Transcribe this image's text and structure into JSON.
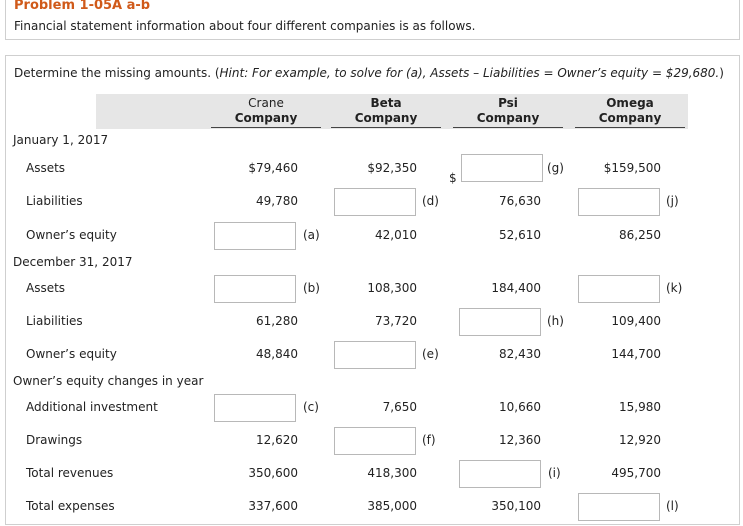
{
  "header": {
    "title": "Problem 1-05A a-b",
    "description": "Financial statement information about four different companies is as follows."
  },
  "instructions": {
    "prefix": "Determine the missing amounts. (",
    "hint": "Hint: For example, to solve for (a), Assets – Liabilities = Owner’s equity = $29,680.",
    "suffix": ")"
  },
  "columns": [
    {
      "line1": "Crane",
      "line2": "Company"
    },
    {
      "line1": "Beta",
      "line2": "Company"
    },
    {
      "line1": "Psi",
      "line2": "Company"
    },
    {
      "line1": "Omega",
      "line2": "Company"
    }
  ],
  "sections": {
    "jan": "January 1, 2017",
    "dec": "December 31, 2017",
    "changes": "Owner’s equity changes in year"
  },
  "rows": [
    {
      "label": "Assets",
      "cells": [
        "$79,460",
        "$92,350",
        "(g)",
        "$159,500"
      ]
    },
    {
      "label": "Liabilities",
      "cells": [
        "49,780",
        "(d)",
        "76,630",
        "(j)"
      ]
    },
    {
      "label": "Owner’s equity",
      "cells": [
        "(a)",
        "42,010",
        "52,610",
        "86,250"
      ]
    },
    {
      "label": "Assets",
      "cells": [
        "(b)",
        "108,300",
        "184,400",
        "(k)"
      ]
    },
    {
      "label": "Liabilities",
      "cells": [
        "61,280",
        "73,720",
        "(h)",
        "109,400"
      ]
    },
    {
      "label": "Owner’s equity",
      "cells": [
        "48,840",
        "(e)",
        "82,430",
        "144,700"
      ]
    },
    {
      "label": "Additional investment",
      "cells": [
        "(c)",
        "7,650",
        "10,660",
        "15,980"
      ]
    },
    {
      "label": "Drawings",
      "cells": [
        "12,620",
        "(f)",
        "12,360",
        "12,920"
      ]
    },
    {
      "label": "Total revenues",
      "cells": [
        "350,600",
        "418,300",
        "(i)",
        "495,700"
      ]
    },
    {
      "label": "Total expenses",
      "cells": [
        "337,600",
        "385,000",
        "350,100",
        "(l)"
      ]
    }
  ],
  "dollar_sign": "$"
}
